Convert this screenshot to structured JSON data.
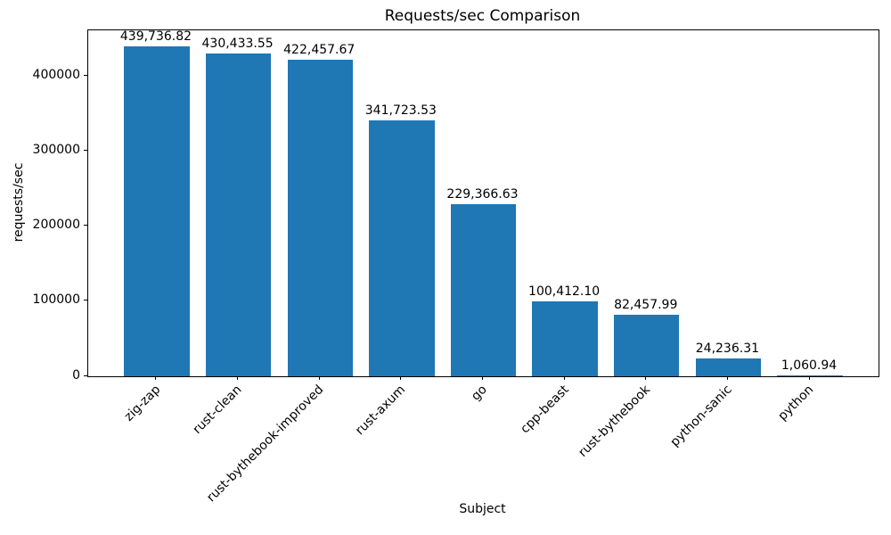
{
  "chart_data": {
    "type": "bar",
    "title": "Requests/sec Comparison",
    "xlabel": "Subject",
    "ylabel": "requests/sec",
    "categories": [
      "zig-zap",
      "rust-clean",
      "rust-bythebook-improved",
      "rust-axum",
      "go",
      "cpp-beast",
      "rust-bythebook",
      "python-sanic",
      "python"
    ],
    "values": [
      439736.82,
      430433.55,
      422457.67,
      341723.53,
      229366.63,
      100412.1,
      82457.99,
      24236.31,
      1060.94
    ],
    "value_labels": [
      "439,736.82",
      "430,433.55",
      "422,457.67",
      "341,723.53",
      "229,366.63",
      "100,412.10",
      "82,457.99",
      "24,236.31",
      "1,060.94"
    ],
    "yticks": [
      0,
      100000,
      200000,
      300000,
      400000
    ],
    "ytick_labels": [
      "0",
      "100000",
      "200000",
      "300000",
      "400000"
    ],
    "ylim": [
      0,
      461723.66
    ],
    "bar_color": "#1f77b4",
    "text_color": "#000000",
    "grid": false,
    "legend_position": "none"
  }
}
